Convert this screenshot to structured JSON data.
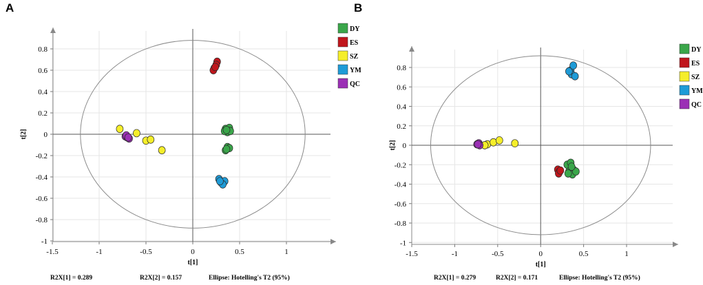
{
  "chart_data": [
    {
      "panel_label": "A",
      "type": "scatter",
      "title": "",
      "xlabel": "t[1]",
      "ylabel": "t[2]",
      "xlim": [
        -1.5,
        1.5
      ],
      "ylim": [
        -1,
        0.9
      ],
      "xticks": [
        -1.5,
        -1,
        -0.5,
        0,
        0.5,
        1
      ],
      "xtick_labels": [
        "-1.5",
        "-1",
        "-0.5",
        "0",
        "0.5",
        "1"
      ],
      "yticks": [
        -1,
        -0.8,
        -0.6,
        -0.4,
        -0.2,
        0,
        0.2,
        0.4,
        0.6,
        0.8
      ],
      "ytick_labels": [
        "-1",
        "-0.8",
        "-0.6",
        "-0.4",
        "-0.2",
        "0",
        "0.2",
        "0.4",
        "0.6",
        "0.8"
      ],
      "grid": true,
      "legend_position": "top-right",
      "ellipse": {
        "center": [
          0,
          0
        ],
        "radii": [
          1.2,
          0.88
        ]
      },
      "footer": [
        "R2X[1] = 0.289",
        "R2X[2] = 0.157",
        "Ellipse: Hotelling's T2 (95%)"
      ],
      "series": [
        {
          "name": "DY",
          "color": "#3aa64a",
          "points": [
            [
              0.35,
              0.05
            ],
            [
              0.39,
              0.06
            ],
            [
              0.37,
              0.02
            ],
            [
              0.34,
              0.03
            ],
            [
              0.4,
              0.03
            ],
            [
              0.36,
              0.04
            ],
            [
              0.37,
              -0.12
            ],
            [
              0.35,
              -0.15
            ],
            [
              0.39,
              -0.13
            ],
            [
              0.36,
              -0.14
            ]
          ]
        },
        {
          "name": "ES",
          "color": "#c0161c",
          "points": [
            [
              0.26,
              0.68
            ],
            [
              0.25,
              0.65
            ],
            [
              0.23,
              0.62
            ],
            [
              0.22,
              0.6
            ],
            [
              0.24,
              0.63
            ]
          ]
        },
        {
          "name": "SZ",
          "color": "#f5ee2a",
          "points": [
            [
              -0.78,
              0.05
            ],
            [
              -0.6,
              0.01
            ],
            [
              -0.5,
              -0.06
            ],
            [
              -0.45,
              -0.05
            ],
            [
              -0.33,
              -0.15
            ]
          ]
        },
        {
          "name": "YM",
          "color": "#1e9bd7",
          "points": [
            [
              0.28,
              -0.42
            ],
            [
              0.3,
              -0.45
            ],
            [
              0.34,
              -0.44
            ],
            [
              0.32,
              -0.47
            ],
            [
              0.29,
              -0.44
            ]
          ]
        },
        {
          "name": "QC",
          "color": "#9b30b5",
          "points": [
            [
              -0.72,
              -0.02
            ],
            [
              -0.7,
              -0.03
            ],
            [
              -0.68,
              -0.04
            ],
            [
              -0.71,
              -0.01
            ],
            [
              -0.69,
              -0.03
            ]
          ]
        }
      ]
    },
    {
      "panel_label": "B",
      "type": "scatter",
      "title": "",
      "xlabel": "t[1]",
      "ylabel": "t[2]",
      "xlim": [
        -1.5,
        1.5
      ],
      "ylim": [
        -1,
        1.0
      ],
      "xticks": [
        -1.5,
        -1,
        -0.5,
        0,
        0.5,
        1
      ],
      "xtick_labels": [
        "-1.5",
        "-1",
        "-0.5",
        "0",
        "0.5",
        "1"
      ],
      "yticks": [
        -1,
        -0.8,
        -0.6,
        -0.4,
        -0.2,
        0,
        0.2,
        0.4,
        0.6,
        0.8
      ],
      "ytick_labels": [
        "-1",
        "-0.8",
        "-0.6",
        "-0.4",
        "-0.2",
        "0",
        "0.2",
        "0.4",
        "0.6",
        "0.8"
      ],
      "grid": true,
      "legend_position": "top-right",
      "ellipse": {
        "center": [
          0,
          0
        ],
        "radii": [
          1.28,
          0.92
        ]
      },
      "footer": [
        "R2X[1] = 0.279",
        "R2X[2] = 0.171",
        "Ellipse: Hotelling's T2 (95%)"
      ],
      "series": [
        {
          "name": "DY",
          "color": "#3aa64a",
          "points": [
            [
              0.31,
              -0.2
            ],
            [
              0.35,
              -0.18
            ],
            [
              0.38,
              -0.25
            ],
            [
              0.33,
              -0.27
            ],
            [
              0.37,
              -0.3
            ],
            [
              0.41,
              -0.27
            ],
            [
              0.32,
              -0.29
            ],
            [
              0.36,
              -0.22
            ]
          ]
        },
        {
          "name": "ES",
          "color": "#c0161c",
          "points": [
            [
              0.2,
              -0.25
            ],
            [
              0.22,
              -0.27
            ],
            [
              0.21,
              -0.29
            ],
            [
              0.23,
              -0.26
            ]
          ]
        },
        {
          "name": "SZ",
          "color": "#f5ee2a",
          "points": [
            [
              -0.72,
              0.02
            ],
            [
              -0.62,
              0.01
            ],
            [
              -0.55,
              0.03
            ],
            [
              -0.48,
              0.05
            ],
            [
              -0.3,
              0.02
            ],
            [
              -0.65,
              0.0
            ]
          ]
        },
        {
          "name": "YM",
          "color": "#1e9bd7",
          "points": [
            [
              0.35,
              0.77
            ],
            [
              0.38,
              0.82
            ],
            [
              0.36,
              0.73
            ],
            [
              0.4,
              0.71
            ],
            [
              0.33,
              0.76
            ]
          ]
        },
        {
          "name": "QC",
          "color": "#9b30b5",
          "points": [
            [
              -0.74,
              0.01
            ],
            [
              -0.72,
              0.02
            ],
            [
              -0.71,
              0.0
            ],
            [
              -0.73,
              0.01
            ]
          ]
        }
      ]
    }
  ]
}
